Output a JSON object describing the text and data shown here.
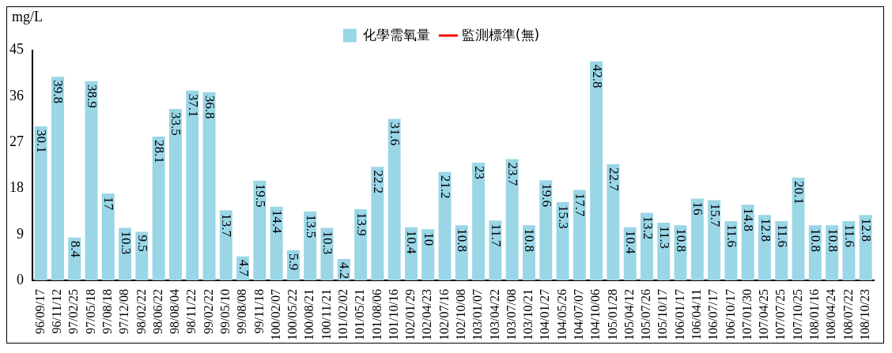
{
  "chart_data": {
    "type": "bar",
    "ylabel": "mg/L",
    "categories": [
      "96/09/17",
      "96/11/12",
      "97/02/25",
      "97/05/18",
      "97/08/18",
      "97/12/08",
      "98/02/22",
      "98/06/22",
      "98/08/04",
      "98/11/22",
      "99/02/22",
      "99/05/10",
      "99/08/08",
      "99/11/18",
      "100/02/07",
      "100/05/22",
      "100/08/21",
      "100/11/21",
      "101/02/02",
      "101/05/21",
      "101/08/06",
      "101/10/16",
      "102/01/29",
      "102/04/23",
      "102/07/16",
      "102/10/08",
      "103/01/07",
      "103/04/22",
      "103/07/08",
      "103/10/21",
      "104/01/27",
      "104/05/26",
      "104/07/07",
      "104/10/06",
      "105/01/28",
      "105/04/12",
      "105/07/26",
      "105/10/17",
      "106/01/17",
      "106/04/11",
      "106/07/17",
      "106/10/17",
      "107/01/30",
      "107/04/25",
      "107/07/25",
      "107/10/25",
      "108/01/16",
      "108/04/24",
      "108/07/22",
      "108/10/23"
    ],
    "series": [
      {
        "name": "化學需氧量",
        "color": "#9ad6e6",
        "values": [
          30.1,
          39.8,
          8.4,
          38.9,
          17,
          10.3,
          9.5,
          28.1,
          33.5,
          37.1,
          36.8,
          13.7,
          4.7,
          19.5,
          14.4,
          5.9,
          13.5,
          10.3,
          4.2,
          13.9,
          22.2,
          31.6,
          10.4,
          10,
          21.2,
          10.8,
          23,
          11.7,
          23.7,
          10.8,
          19.6,
          15.3,
          17.7,
          42.8,
          22.7,
          10.4,
          13.2,
          11.3,
          10.8,
          16,
          15.7,
          11.6,
          14.8,
          12.8,
          11.6,
          20.1,
          10.8,
          10.8,
          11.6,
          12.8
        ]
      },
      {
        "name": "監測標準(無)",
        "type": "line",
        "color": "#ff0000",
        "values": [
          null,
          null,
          null,
          null,
          null,
          null,
          null,
          null,
          null,
          null,
          null,
          null,
          null,
          null,
          null,
          null,
          null,
          null,
          null,
          null,
          null,
          null,
          null,
          null,
          null,
          null,
          null,
          null,
          null,
          null,
          null,
          null,
          null,
          null,
          null,
          null,
          null,
          null,
          null,
          null,
          null,
          null,
          null,
          null,
          null,
          null,
          null,
          null,
          null,
          null
        ]
      }
    ],
    "ylim": [
      0,
      45
    ],
    "yticks": [
      0,
      9,
      18,
      27,
      36,
      45
    ],
    "grid": false,
    "legend": "top",
    "data_labels": true
  }
}
